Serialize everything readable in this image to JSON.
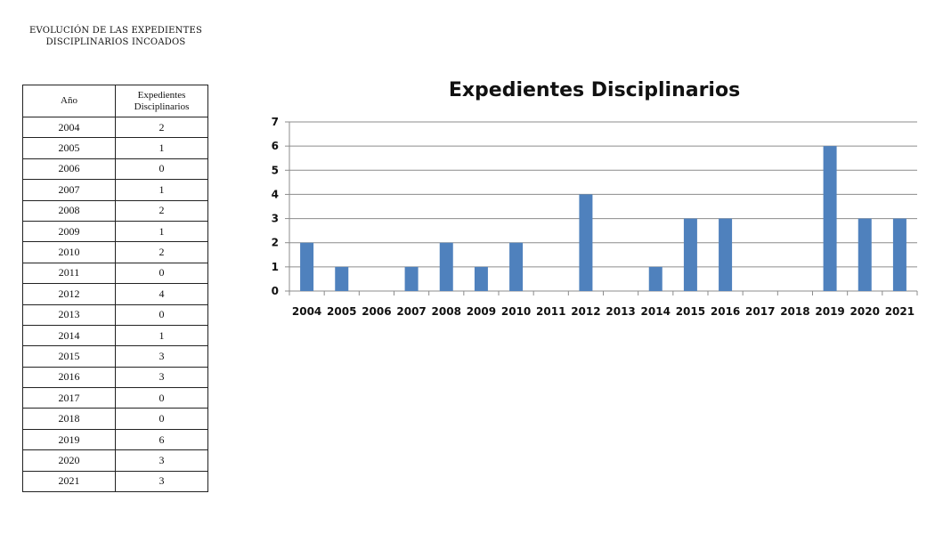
{
  "table": {
    "heading_line1": "EVOLUCIÓN DE LAS EXPEDIENTES",
    "heading_line2": "DISCIPLINARIOS INCOADOS",
    "col_year": "Año",
    "col_value_line1": "Expedientes",
    "col_value_line2": "Disciplinarios",
    "rows": [
      {
        "year": "2004",
        "value": "2"
      },
      {
        "year": "2005",
        "value": "1"
      },
      {
        "year": "2006",
        "value": "0"
      },
      {
        "year": "2007",
        "value": "1"
      },
      {
        "year": "2008",
        "value": "2"
      },
      {
        "year": "2009",
        "value": "1"
      },
      {
        "year": "2010",
        "value": "2"
      },
      {
        "year": "2011",
        "value": "0"
      },
      {
        "year": "2012",
        "value": "4"
      },
      {
        "year": "2013",
        "value": "0"
      },
      {
        "year": "2014",
        "value": "1"
      },
      {
        "year": "2015",
        "value": "3"
      },
      {
        "year": "2016",
        "value": "3"
      },
      {
        "year": "2017",
        "value": "0"
      },
      {
        "year": "2018",
        "value": "0"
      },
      {
        "year": "2019",
        "value": "6"
      },
      {
        "year": "2020",
        "value": "3"
      },
      {
        "year": "2021",
        "value": "3"
      }
    ]
  },
  "chart_data": {
    "type": "bar",
    "title": "Expedientes Disciplinarios",
    "categories": [
      "2004",
      "2005",
      "2006",
      "2007",
      "2008",
      "2009",
      "2010",
      "2011",
      "2012",
      "2013",
      "2014",
      "2015",
      "2016",
      "2017",
      "2018",
      "2019",
      "2020",
      "2021"
    ],
    "values": [
      2,
      1,
      0,
      1,
      2,
      1,
      2,
      0,
      4,
      0,
      1,
      3,
      3,
      0,
      0,
      6,
      3,
      3
    ],
    "xlabel": "",
    "ylabel": "",
    "ylim": [
      0,
      7
    ],
    "yticks": [
      0,
      1,
      2,
      3,
      4,
      5,
      6,
      7
    ],
    "grid": true,
    "bar_color": "#4f81bd",
    "grid_color": "#8c8c8c"
  }
}
